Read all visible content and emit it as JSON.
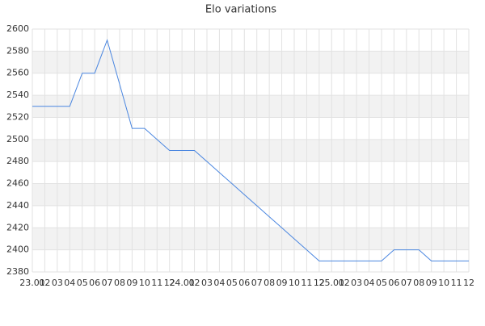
{
  "chart_data": {
    "type": "line",
    "title": "Elo variations",
    "categories": [
      "23.01",
      "02",
      "03",
      "04",
      "05",
      "06",
      "07",
      "08",
      "09",
      "10",
      "11",
      "12",
      "24.01",
      "02",
      "03",
      "04",
      "05",
      "06",
      "07",
      "08",
      "09",
      "10",
      "11",
      "12",
      "25.01",
      "02",
      "03",
      "04",
      "05",
      "06",
      "07",
      "08",
      "09",
      "10",
      "11",
      "12"
    ],
    "values": [
      2530,
      2530,
      2530,
      2530,
      2560,
      2560,
      2590,
      2550,
      2510,
      2510,
      2500,
      2490,
      2490,
      2490,
      2480,
      2470,
      2460,
      2450,
      2440,
      2430,
      2420,
      2410,
      2400,
      2390,
      2390,
      2390,
      2390,
      2390,
      2390,
      2400,
      2400,
      2400,
      2390,
      2390,
      2390,
      2390
    ],
    "color": "#4a86e0",
    "ylim": [
      2380,
      2600
    ],
    "yticks": [
      2380,
      2400,
      2420,
      2440,
      2460,
      2480,
      2500,
      2520,
      2540,
      2560,
      2580,
      2600
    ],
    "grid": true,
    "alternate_bands": true,
    "band_color": "#f2f2f2"
  }
}
